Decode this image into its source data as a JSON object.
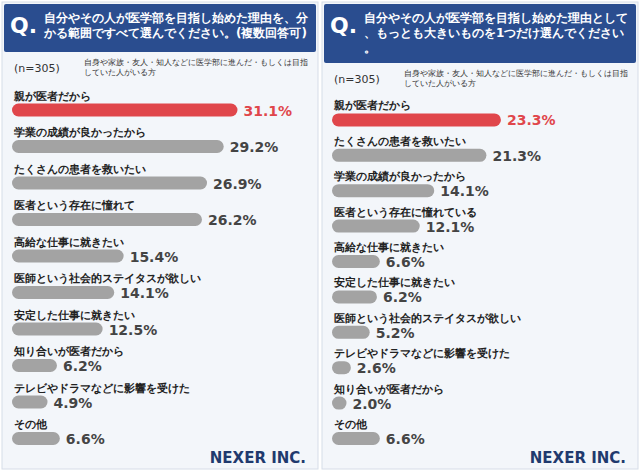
{
  "chart_data": [
    {
      "type": "bar",
      "orientation": "horizontal",
      "question_label": "Q.",
      "title": "自分やその人が医学部を目指し始めた理由を、分かる範囲ですべて選んでください。(複数回答可)",
      "subtitle": "(n=305)",
      "note": "自身や家族・友人・知人などに医学部に進んだ・もしくは目指していた人がいる方",
      "source": "NEXER INC.",
      "categories": [
        "親が医者だから",
        "学業の成績が良かったから",
        "たくさんの患者を救いたい",
        "医者という存在に憧れて",
        "高給な仕事に就きたい",
        "医師という社会的ステイタスが欲しい",
        "安定した仕事に就きたい",
        "知り合いが医者だから",
        "テレビやドラマなどに影響を受けた",
        "その他"
      ],
      "values": [
        31.1,
        29.2,
        26.9,
        26.2,
        15.4,
        14.1,
        12.5,
        6.2,
        4.9,
        6.6
      ],
      "value_labels": [
        "31.1%",
        "29.2%",
        "26.9%",
        "26.2%",
        "15.4%",
        "14.1%",
        "12.5%",
        "6.2%",
        "4.9%",
        "6.6%"
      ],
      "colors": [
        "#e0464b",
        "#a3a3a3",
        "#a3a3a3",
        "#a3a3a3",
        "#a3a3a3",
        "#a3a3a3",
        "#a3a3a3",
        "#a3a3a3",
        "#a3a3a3",
        "#a3a3a3"
      ],
      "xlim": [
        0,
        40
      ],
      "tick_labels": false,
      "data_labels": true
    },
    {
      "type": "bar",
      "orientation": "horizontal",
      "question_label": "Q.",
      "title": "自分やその人が医学部を目指し始めた理由として、もっとも大きいものを1つだけ選んでください。",
      "subtitle": "(n=305)",
      "note": "自身や家族・友人・知人などに医学部に進んだ・もしくは目指していた人がいる方",
      "source": "NEXER INC.",
      "categories": [
        "親が医者だから",
        "たくさんの患者を救いたい",
        "学業の成績が良かったから",
        "医者という存在に憧れている",
        "高給な仕事に就きたい",
        "安定した仕事に就きたい",
        "医師という社会的ステイタスが欲しい",
        "テレビやドラマなどに影響を受けた",
        "知り合いが医者だから",
        "その他"
      ],
      "values": [
        23.3,
        21.3,
        14.1,
        12.1,
        6.6,
        6.2,
        5.2,
        2.6,
        2.0,
        6.6
      ],
      "value_labels": [
        "23.3%",
        "21.3%",
        "14.1%",
        "12.1%",
        "6.6%",
        "6.2%",
        "5.2%",
        "2.6%",
        "2.0%",
        "6.6%"
      ],
      "colors": [
        "#e0464b",
        "#a3a3a3",
        "#a3a3a3",
        "#a3a3a3",
        "#a3a3a3",
        "#a3a3a3",
        "#a3a3a3",
        "#a3a3a3",
        "#a3a3a3",
        "#a3a3a3"
      ],
      "xlim": [
        0,
        40
      ],
      "tick_labels": false,
      "data_labels": true
    }
  ]
}
